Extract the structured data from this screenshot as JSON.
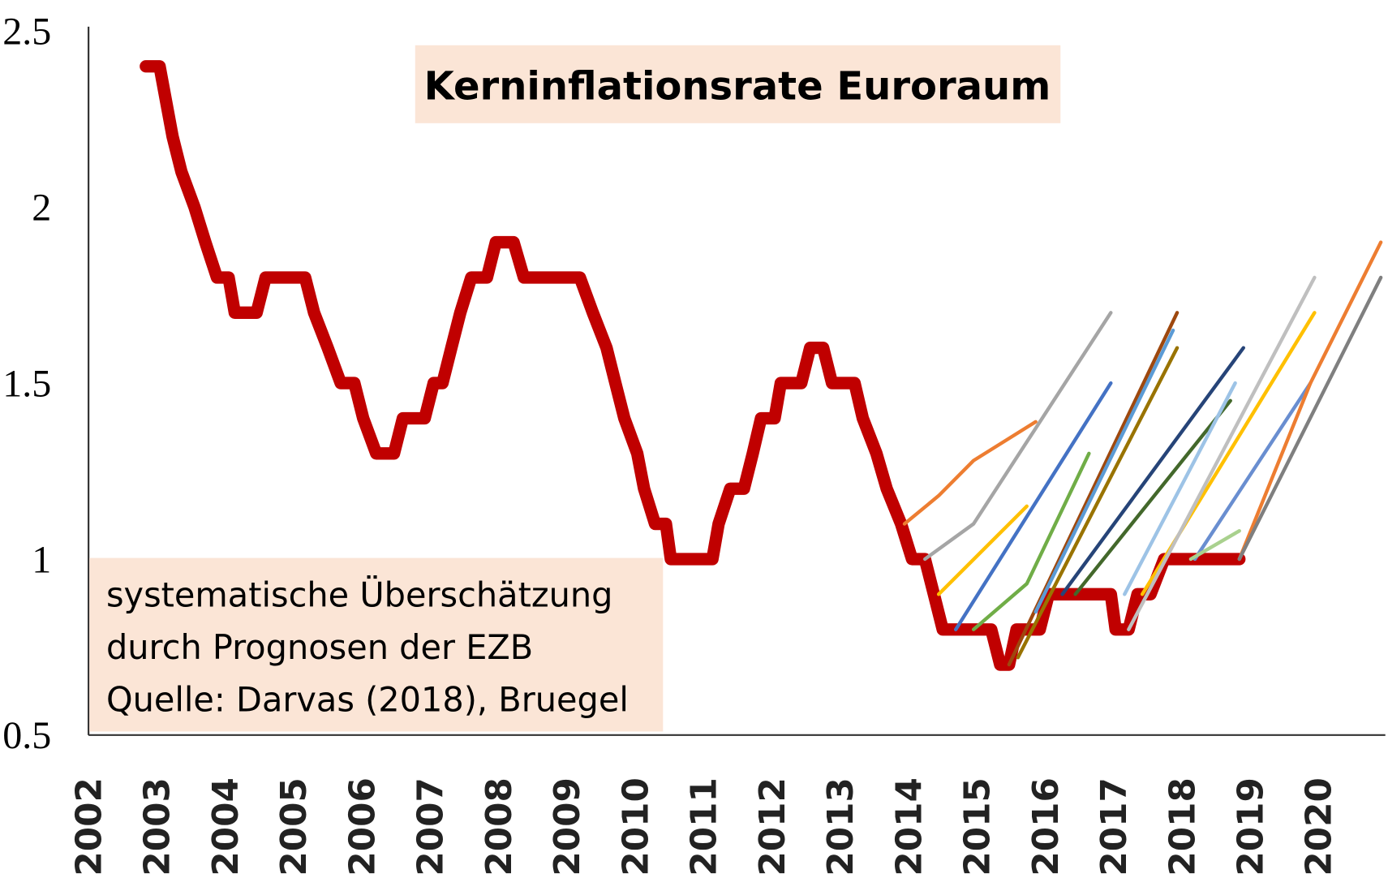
{
  "chart_data": {
    "type": "line",
    "title": "Kerninflationsrate Euroraum",
    "annotation": [
      "systematische Überschätzung",
      "durch Prognosen der EZB",
      "Quelle: Darvas (2018), Bruegel"
    ],
    "xlim": [
      2002,
      2020.97
    ],
    "xticks": [
      2002,
      2003,
      2004,
      2005,
      2006,
      2007,
      2008,
      2009,
      2010,
      2011,
      2012,
      2013,
      2014,
      2015,
      2016,
      2017,
      2018,
      2019,
      2020
    ],
    "ylim": [
      0.5,
      2.5
    ],
    "yticks": [
      0.5,
      1,
      1.5,
      2,
      2.5
    ],
    "series": [
      {
        "color": "#c00000",
        "width": 14,
        "x": [
          2002.84,
          2003.04,
          2003.23,
          2003.36,
          2003.55,
          2003.71,
          2003.88,
          2004.05,
          2004.14,
          2004.46,
          2004.59,
          2005.17,
          2005.3,
          2005.5,
          2005.69,
          2005.89,
          2006.02,
          2006.21,
          2006.47,
          2006.6,
          2006.92,
          2007.05,
          2007.18,
          2007.31,
          2007.44,
          2007.6,
          2007.83,
          2007.96,
          2008.22,
          2008.37,
          2009.19,
          2009.38,
          2009.58,
          2009.71,
          2009.84,
          2010.03,
          2010.13,
          2010.29,
          2010.45,
          2010.52,
          2011.13,
          2011.22,
          2011.39,
          2011.59,
          2011.72,
          2011.84,
          2012.04,
          2012.13,
          2012.43,
          2012.56,
          2012.75,
          2012.88,
          2013.21,
          2013.33,
          2013.53,
          2013.68,
          2013.89,
          2014.05,
          2014.24,
          2014.37,
          2014.5,
          2014.63,
          2015.21,
          2015.34,
          2015.47,
          2015.58,
          2015.92,
          2016.05,
          2016.96,
          2017.03,
          2017.22,
          2017.35,
          2017.54,
          2017.74,
          2018.84
        ],
        "values": [
          2.4,
          2.4,
          2.2,
          2.1,
          2.0,
          1.9,
          1.8,
          1.8,
          1.7,
          1.7,
          1.8,
          1.8,
          1.7,
          1.6,
          1.5,
          1.5,
          1.4,
          1.3,
          1.3,
          1.4,
          1.4,
          1.5,
          1.5,
          1.6,
          1.7,
          1.8,
          1.8,
          1.9,
          1.9,
          1.8,
          1.8,
          1.7,
          1.6,
          1.5,
          1.4,
          1.3,
          1.2,
          1.1,
          1.1,
          1.0,
          1.0,
          1.1,
          1.2,
          1.2,
          1.3,
          1.4,
          1.4,
          1.5,
          1.5,
          1.6,
          1.6,
          1.5,
          1.5,
          1.4,
          1.3,
          1.2,
          1.1,
          1.0,
          1.0,
          0.9,
          0.8,
          0.8,
          0.8,
          0.7,
          0.7,
          0.8,
          0.8,
          0.9,
          0.9,
          0.8,
          0.8,
          0.9,
          0.9,
          1.0,
          1.0
        ]
      },
      {
        "color": "#ed7d31",
        "width": 4,
        "x": [
          2013.94,
          2014.44,
          2014.95,
          2015.86
        ],
        "values": [
          1.1,
          1.18,
          1.28,
          1.39
        ]
      },
      {
        "color": "#a5a5a5",
        "width": 4,
        "x": [
          2014.24,
          2014.95,
          2016.96
        ],
        "values": [
          1.0,
          1.1,
          1.7
        ]
      },
      {
        "color": "#ffc000",
        "width": 4,
        "x": [
          2014.44,
          2015.73
        ],
        "values": [
          0.9,
          1.15
        ]
      },
      {
        "color": "#4472c4",
        "width": 4,
        "x": [
          2014.69,
          2016.96
        ],
        "values": [
          0.8,
          1.5
        ]
      },
      {
        "color": "#70ad47",
        "width": 4,
        "x": [
          2014.95,
          2015.73,
          2016.64
        ],
        "values": [
          0.8,
          0.93,
          1.3
        ]
      },
      {
        "color": "#9e480e",
        "width": 4,
        "x": [
          2015.47,
          2017.93
        ],
        "values": [
          0.7,
          1.7
        ]
      },
      {
        "color": "#997300",
        "width": 4,
        "x": [
          2015.6,
          2017.93
        ],
        "values": [
          0.72,
          1.6
        ]
      },
      {
        "color": "#5b9bd5",
        "width": 4,
        "x": [
          2015.86,
          2017.87
        ],
        "values": [
          0.85,
          1.65
        ]
      },
      {
        "color": "#264478",
        "width": 4,
        "x": [
          2016.25,
          2018.9
        ],
        "values": [
          0.9,
          1.6
        ]
      },
      {
        "color": "#43682b",
        "width": 4,
        "x": [
          2016.44,
          2018.71
        ],
        "values": [
          0.9,
          1.45
        ]
      },
      {
        "color": "#9dc3e6",
        "width": 4,
        "x": [
          2017.16,
          2018.78
        ],
        "values": [
          0.9,
          1.5
        ]
      },
      {
        "color": "#ffc000",
        "width": 4,
        "x": [
          2017.42,
          2019.94
        ],
        "values": [
          0.9,
          1.7
        ]
      },
      {
        "color": "#bfbfbf",
        "width": 4,
        "x": [
          2017.22,
          2019.94
        ],
        "values": [
          0.8,
          1.8
        ]
      },
      {
        "color": "#698ed0",
        "width": 4,
        "x": [
          2018.19,
          2019.88
        ],
        "values": [
          1.0,
          1.5
        ]
      },
      {
        "color": "#a9d18e",
        "width": 4,
        "x": [
          2018.13,
          2018.84
        ],
        "values": [
          1.0,
          1.08
        ]
      },
      {
        "color": "#ed7d31",
        "width": 4,
        "x": [
          2018.84,
          2019.88,
          2020.91
        ],
        "values": [
          1.0,
          1.5,
          1.9
        ]
      },
      {
        "color": "#7f7f7f",
        "width": 4,
        "x": [
          2018.84,
          2020.91
        ],
        "values": [
          1.0,
          1.8
        ]
      }
    ]
  }
}
